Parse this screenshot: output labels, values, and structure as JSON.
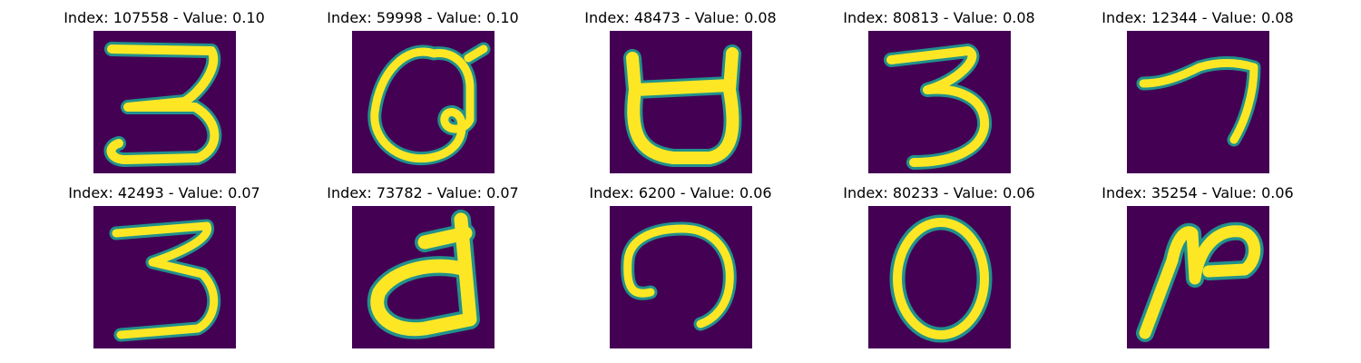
{
  "figure": {
    "colormap": {
      "background": "#440154",
      "edge": "#21918c",
      "mid": "#5ec962",
      "foreground": "#fde725"
    },
    "panels": [
      {
        "title": "Index: 107558 - Value: 0.10",
        "glyph": "3"
      },
      {
        "title": "Index: 59998 - Value: 0.10",
        "glyph": "Q"
      },
      {
        "title": "Index: 48473 - Value: 0.08",
        "glyph": "cup"
      },
      {
        "title": "Index: 80813 - Value: 0.08",
        "glyph": "3"
      },
      {
        "title": "Index: 12344 - Value: 0.08",
        "glyph": "7"
      },
      {
        "title": "Index: 42493 - Value: 0.07",
        "glyph": "3"
      },
      {
        "title": "Index: 73782 - Value: 0.07",
        "glyph": "d"
      },
      {
        "title": "Index: 6200 - Value: 0.06",
        "glyph": "arch"
      },
      {
        "title": "Index: 80233 - Value: 0.06",
        "glyph": "0"
      },
      {
        "title": "Index: 35254 - Value: 0.06",
        "glyph": "N"
      }
    ]
  }
}
